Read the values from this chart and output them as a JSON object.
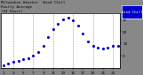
{
  "title_line1": "Milwaukee Weather  Wind Chill",
  "title_line2": "Hourly Average",
  "title_line3": "(24 Hours)",
  "hours": [
    1,
    2,
    3,
    4,
    5,
    6,
    7,
    8,
    9,
    10,
    11,
    12,
    13,
    14,
    15,
    16,
    17,
    18,
    19,
    20,
    21,
    22,
    23,
    24
  ],
  "wind_chill": [
    -8,
    -6,
    -5,
    -4,
    -3,
    -2,
    0,
    3,
    8,
    15,
    22,
    26,
    30,
    31,
    29,
    25,
    18,
    12,
    8,
    7,
    6,
    7,
    8,
    8
  ],
  "dot_color": "#0000cc",
  "bg_color": "#ffffff",
  "outer_bg": "#888888",
  "border_color": "#000000",
  "grid_color": "#999999",
  "title_color": "#000000",
  "legend_fill": "#0000cc",
  "legend_text": "Wind Chill",
  "ylim": [
    -10,
    35
  ],
  "yticks": [
    0,
    10,
    20,
    30
  ],
  "ytick_labels": [
    "0",
    "10",
    "20",
    "30"
  ],
  "grid_hours": [
    3,
    7,
    11,
    15,
    19,
    23
  ],
  "xtick_hours": [
    1,
    3,
    5,
    7,
    9,
    11,
    13,
    15,
    17,
    19,
    21,
    23
  ],
  "figsize": [
    1.6,
    0.87
  ],
  "dpi": 100
}
